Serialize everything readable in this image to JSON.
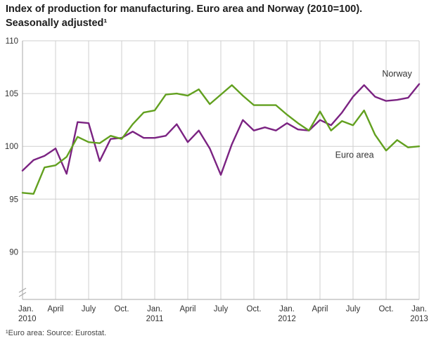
{
  "title": {
    "line1": "Index of production for manufacturing. Euro area and Norway (2010=100).",
    "line2": "Seasonally adjusted¹"
  },
  "footnote": "¹Euro area: Source: Eurostat.",
  "chart_data": {
    "type": "line",
    "title": "Index of production for manufacturing. Euro area and Norway (2010=100). Seasonally adjusted",
    "xlabel": "",
    "ylabel": "",
    "ylim": [
      85.5,
      110
    ],
    "y_ticks": [
      90,
      95,
      100,
      105,
      110
    ],
    "grid": true,
    "axis_break": true,
    "x_categories": [
      "Jan 2010",
      "Feb 2010",
      "Mar 2010",
      "Apr 2010",
      "May 2010",
      "Jun 2010",
      "Jul 2010",
      "Aug 2010",
      "Sep 2010",
      "Oct 2010",
      "Nov 2010",
      "Dec 2010",
      "Jan 2011",
      "Feb 2011",
      "Mar 2011",
      "Apr 2011",
      "May 2011",
      "Jun 2011",
      "Jul 2011",
      "Aug 2011",
      "Sep 2011",
      "Oct 2011",
      "Nov 2011",
      "Dec 2011",
      "Jan 2012",
      "Feb 2012",
      "Mar 2012",
      "Apr 2012",
      "May 2012",
      "Jun 2012",
      "Jul 2012",
      "Aug 2012",
      "Sep 2012",
      "Oct 2012",
      "Nov 2012",
      "Dec 2012",
      "Jan 2013"
    ],
    "x_ticks": [
      {
        "index": 0,
        "month": "Jan.",
        "year": "2010"
      },
      {
        "index": 3,
        "month": "April"
      },
      {
        "index": 6,
        "month": "July"
      },
      {
        "index": 9,
        "month": "Oct."
      },
      {
        "index": 12,
        "month": "Jan.",
        "year": "2011"
      },
      {
        "index": 15,
        "month": "April"
      },
      {
        "index": 18,
        "month": "July"
      },
      {
        "index": 21,
        "month": "Oct."
      },
      {
        "index": 24,
        "month": "Jan.",
        "year": "2012"
      },
      {
        "index": 27,
        "month": "April"
      },
      {
        "index": 30,
        "month": "July"
      },
      {
        "index": 33,
        "month": "Oct."
      },
      {
        "index": 36,
        "month": "Jan.",
        "year": "2013"
      }
    ],
    "series": [
      {
        "name": "Norway",
        "color": "#7b2382",
        "values": [
          97.7,
          98.7,
          99.1,
          99.8,
          97.4,
          102.3,
          102.2,
          98.6,
          100.7,
          100.8,
          101.4,
          100.8,
          100.8,
          101.0,
          102.1,
          100.4,
          101.5,
          99.8,
          97.3,
          100.2,
          102.5,
          101.5,
          101.8,
          101.5,
          102.2,
          101.6,
          101.5,
          102.5,
          102.0,
          103.2,
          104.7,
          105.8,
          104.7,
          104.3,
          104.4,
          104.6,
          105.9
        ]
      },
      {
        "name": "Euro area",
        "color": "#62a01f",
        "values": [
          95.6,
          95.5,
          98.0,
          98.2,
          99.0,
          100.9,
          100.4,
          100.3,
          101.0,
          100.7,
          102.1,
          103.2,
          103.4,
          104.9,
          105.0,
          104.8,
          105.4,
          104.0,
          104.9,
          105.8,
          104.8,
          103.9,
          103.9,
          103.9,
          103.0,
          102.2,
          101.5,
          103.3,
          101.5,
          102.4,
          102.0,
          103.4,
          101.1,
          99.6,
          100.6,
          99.9,
          100.0
        ]
      }
    ],
    "annotations": [
      {
        "text": "Norway",
        "x_index": 32,
        "dx": 10,
        "y": 106.6,
        "series": "norway"
      },
      {
        "text": "Euro area",
        "x_index": 28,
        "dx": 6,
        "y": 98.9,
        "series": "euro-area"
      }
    ],
    "legend_position": "inline-labels"
  }
}
